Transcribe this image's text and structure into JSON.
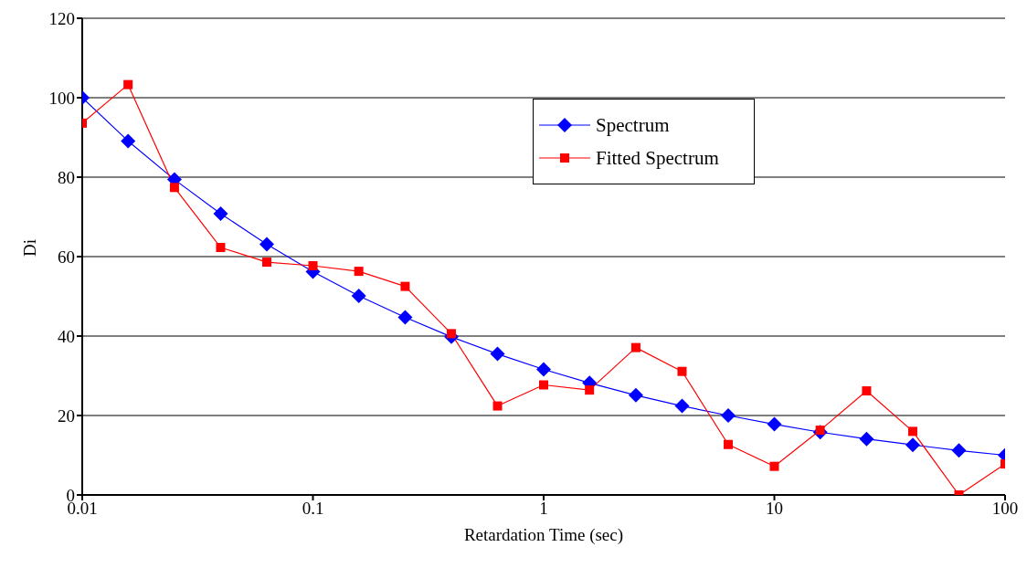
{
  "chart_data": {
    "type": "line",
    "xlabel": "Retardation Time (sec)",
    "ylabel": "Di",
    "x": [
      0.01,
      0.0158,
      0.0251,
      0.0398,
      0.0631,
      0.1,
      0.158,
      0.251,
      0.398,
      0.631,
      1,
      1.58,
      2.51,
      3.98,
      6.31,
      10,
      15.8,
      25.1,
      39.8,
      63.1,
      100
    ],
    "series": [
      {
        "name": "Spectrum",
        "color": "#0000ff",
        "marker": "diamond",
        "values": [
          100,
          89.1,
          79.4,
          70.8,
          63.1,
          56.2,
          50.1,
          44.7,
          39.8,
          35.5,
          31.6,
          28.2,
          25.1,
          22.4,
          20,
          17.8,
          15.8,
          14.1,
          12.6,
          11.2,
          10
        ]
      },
      {
        "name": "Fitted Spectrum",
        "color": "#ff0000",
        "marker": "square",
        "values": [
          93.6,
          103.3,
          77.4,
          62.3,
          58.6,
          57.7,
          56.3,
          52.5,
          40.6,
          22.4,
          27.7,
          26.4,
          37.1,
          31.1,
          12.7,
          7.2,
          16.3,
          26.2,
          16,
          0,
          7.8
        ]
      }
    ],
    "log": "x",
    "xlim": [
      0.01,
      100
    ],
    "xticks": [
      0.01,
      0.1,
      1,
      10,
      100
    ],
    "ylim": [
      0,
      120
    ],
    "yticks": [
      0,
      20,
      40,
      60,
      80,
      100,
      120
    ],
    "grid": "y",
    "legend": "top right",
    "line_style": "solid"
  }
}
